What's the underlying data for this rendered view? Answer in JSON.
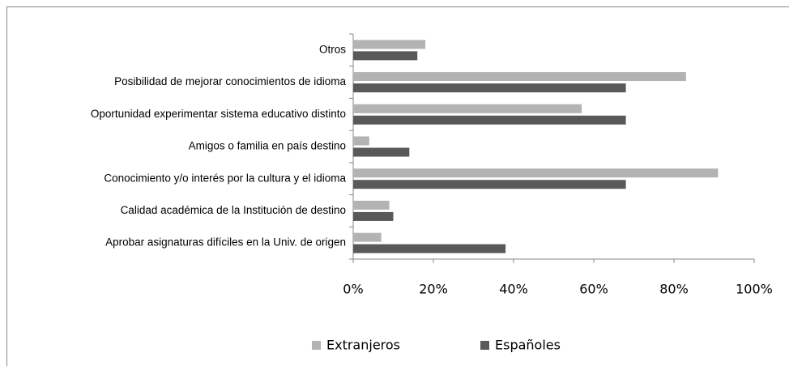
{
  "chart_data": {
    "type": "bar",
    "orientation": "horizontal",
    "categories": [
      "Otros",
      "Posibilidad de mejorar conocimientos de idioma",
      "Oportunidad experimentar sistema educativo distinto",
      "Amigos o familia en país destino",
      "Conocimiento y/o interés por la cultura y el idioma",
      "Calidad académica de la Institución de destino",
      "Aprobar asignaturas difíciles en la Univ. de origen"
    ],
    "series": [
      {
        "name": "Extranjeros",
        "color": "#b3b3b3",
        "values": [
          18,
          83,
          57,
          4,
          91,
          9,
          7
        ]
      },
      {
        "name": "Españoles",
        "color": "#595959",
        "values": [
          16,
          68,
          68,
          14,
          68,
          10,
          38
        ]
      }
    ],
    "xlim": [
      0,
      100
    ],
    "xticks": [
      {
        "value": 0,
        "label": "0%"
      },
      {
        "value": 20,
        "label": "20%"
      },
      {
        "value": 40,
        "label": "40%"
      },
      {
        "value": 60,
        "label": "60%"
      },
      {
        "value": 80,
        "label": "80%"
      },
      {
        "value": 100,
        "label": "100%"
      }
    ],
    "grid": false,
    "legend": "bottom"
  }
}
